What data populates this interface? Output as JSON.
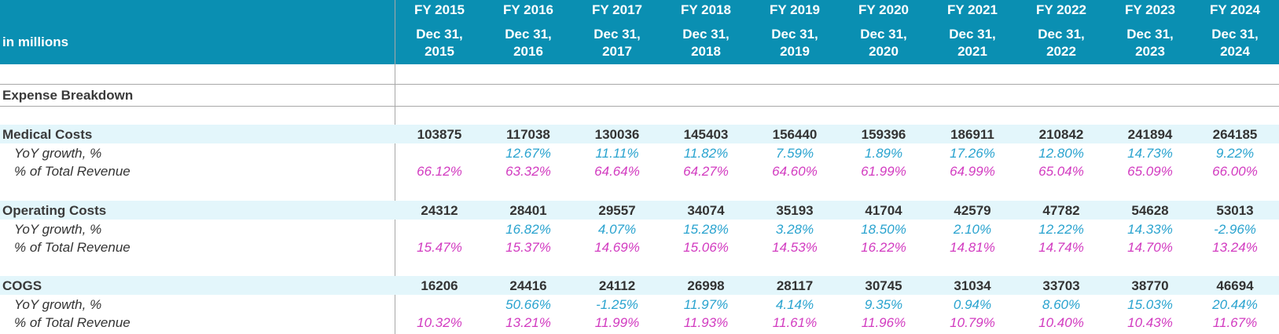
{
  "header": {
    "unit_label": "in millions",
    "columns": [
      {
        "fy": "FY 2015",
        "date_line1": "Dec 31,",
        "date_line2": "2015"
      },
      {
        "fy": "FY 2016",
        "date_line1": "Dec 31,",
        "date_line2": "2016"
      },
      {
        "fy": "FY 2017",
        "date_line1": "Dec 31,",
        "date_line2": "2017"
      },
      {
        "fy": "FY 2018",
        "date_line1": "Dec 31,",
        "date_line2": "2018"
      },
      {
        "fy": "FY 2019",
        "date_line1": "Dec 31,",
        "date_line2": "2019"
      },
      {
        "fy": "FY 2020",
        "date_line1": "Dec 31,",
        "date_line2": "2020"
      },
      {
        "fy": "FY 2021",
        "date_line1": "Dec 31,",
        "date_line2": "2021"
      },
      {
        "fy": "FY 2022",
        "date_line1": "Dec 31,",
        "date_line2": "2022"
      },
      {
        "fy": "FY 2023",
        "date_line1": "Dec 31,",
        "date_line2": "2023"
      },
      {
        "fy": "FY 2024",
        "date_line1": "Dec 31,",
        "date_line2": "2024"
      }
    ]
  },
  "section_title": "Expense Breakdown",
  "groups": [
    {
      "name": "Medical Costs",
      "values": [
        "103875",
        "117038",
        "130036",
        "145403",
        "156440",
        "159396",
        "186911",
        "210842",
        "241894",
        "264185"
      ],
      "growth_label": "YoY growth, %",
      "growth": [
        "",
        "12.67%",
        "11.11%",
        "11.82%",
        "7.59%",
        "1.89%",
        "17.26%",
        "12.80%",
        "14.73%",
        "9.22%"
      ],
      "pct_label": "% of Total Revenue",
      "pct": [
        "66.12%",
        "63.32%",
        "64.64%",
        "64.27%",
        "64.60%",
        "61.99%",
        "64.99%",
        "65.04%",
        "65.09%",
        "66.00%"
      ]
    },
    {
      "name": "Operating Costs",
      "values": [
        "24312",
        "28401",
        "29557",
        "34074",
        "35193",
        "41704",
        "42579",
        "47782",
        "54628",
        "53013"
      ],
      "growth_label": "YoY growth, %",
      "growth": [
        "",
        "16.82%",
        "4.07%",
        "15.28%",
        "3.28%",
        "18.50%",
        "2.10%",
        "12.22%",
        "14.33%",
        "-2.96%"
      ],
      "pct_label": "% of Total Revenue",
      "pct": [
        "15.47%",
        "15.37%",
        "14.69%",
        "15.06%",
        "14.53%",
        "16.22%",
        "14.81%",
        "14.74%",
        "14.70%",
        "13.24%"
      ]
    },
    {
      "name": "COGS",
      "values": [
        "16206",
        "24416",
        "24112",
        "26998",
        "28117",
        "30745",
        "31034",
        "33703",
        "38770",
        "46694"
      ],
      "growth_label": "YoY growth, %",
      "growth": [
        "",
        "50.66%",
        "-1.25%",
        "11.97%",
        "4.14%",
        "9.35%",
        "0.94%",
        "8.60%",
        "15.03%",
        "20.44%"
      ],
      "pct_label": "% of Total Revenue",
      "pct": [
        "10.32%",
        "13.21%",
        "11.99%",
        "11.93%",
        "11.61%",
        "11.96%",
        "10.79%",
        "10.40%",
        "10.43%",
        "11.67%"
      ]
    }
  ]
}
